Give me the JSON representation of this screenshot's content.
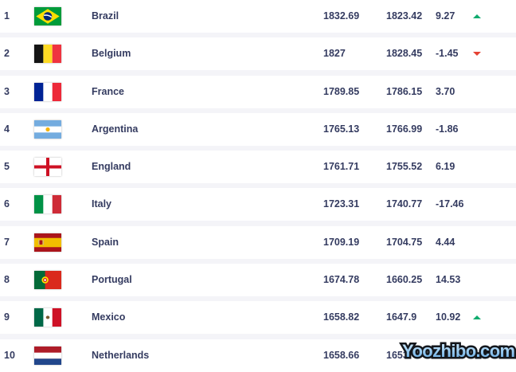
{
  "colors": {
    "page_background": "#f4f4f8",
    "row_background": "#ffffff",
    "text": "#343b60",
    "trend_up": "#10ab6e",
    "trend_down": "#e54234"
  },
  "watermark": {
    "text": "Yoozhibo.com"
  },
  "ranking_table": {
    "rows": [
      {
        "rank": "1",
        "country": "Brazil",
        "flag": "brazil",
        "points": "1832.69",
        "previous_points": "1823.42",
        "change": "9.27",
        "trend": "up"
      },
      {
        "rank": "2",
        "country": "Belgium",
        "flag": "belgium",
        "points": "1827",
        "previous_points": "1828.45",
        "change": "-1.45",
        "trend": "down"
      },
      {
        "rank": "3",
        "country": "France",
        "flag": "france",
        "points": "1789.85",
        "previous_points": "1786.15",
        "change": "3.70",
        "trend": "none"
      },
      {
        "rank": "4",
        "country": "Argentina",
        "flag": "argentina",
        "points": "1765.13",
        "previous_points": "1766.99",
        "change": "-1.86",
        "trend": "none"
      },
      {
        "rank": "5",
        "country": "England",
        "flag": "england",
        "points": "1761.71",
        "previous_points": "1755.52",
        "change": "6.19",
        "trend": "none"
      },
      {
        "rank": "6",
        "country": "Italy",
        "flag": "italy",
        "points": "1723.31",
        "previous_points": "1740.77",
        "change": "-17.46",
        "trend": "none"
      },
      {
        "rank": "7",
        "country": "Spain",
        "flag": "spain",
        "points": "1709.19",
        "previous_points": "1704.75",
        "change": "4.44",
        "trend": "none"
      },
      {
        "rank": "8",
        "country": "Portugal",
        "flag": "portugal",
        "points": "1674.78",
        "previous_points": "1660.25",
        "change": "14.53",
        "trend": "none"
      },
      {
        "rank": "9",
        "country": "Mexico",
        "flag": "mexico",
        "points": "1658.82",
        "previous_points": "1647.9",
        "change": "10.92",
        "trend": "up"
      },
      {
        "rank": "10",
        "country": "Netherlands",
        "flag": "netherlands",
        "points": "1658.66",
        "previous_points": "1653.",
        "change": "",
        "trend": "none"
      }
    ]
  }
}
